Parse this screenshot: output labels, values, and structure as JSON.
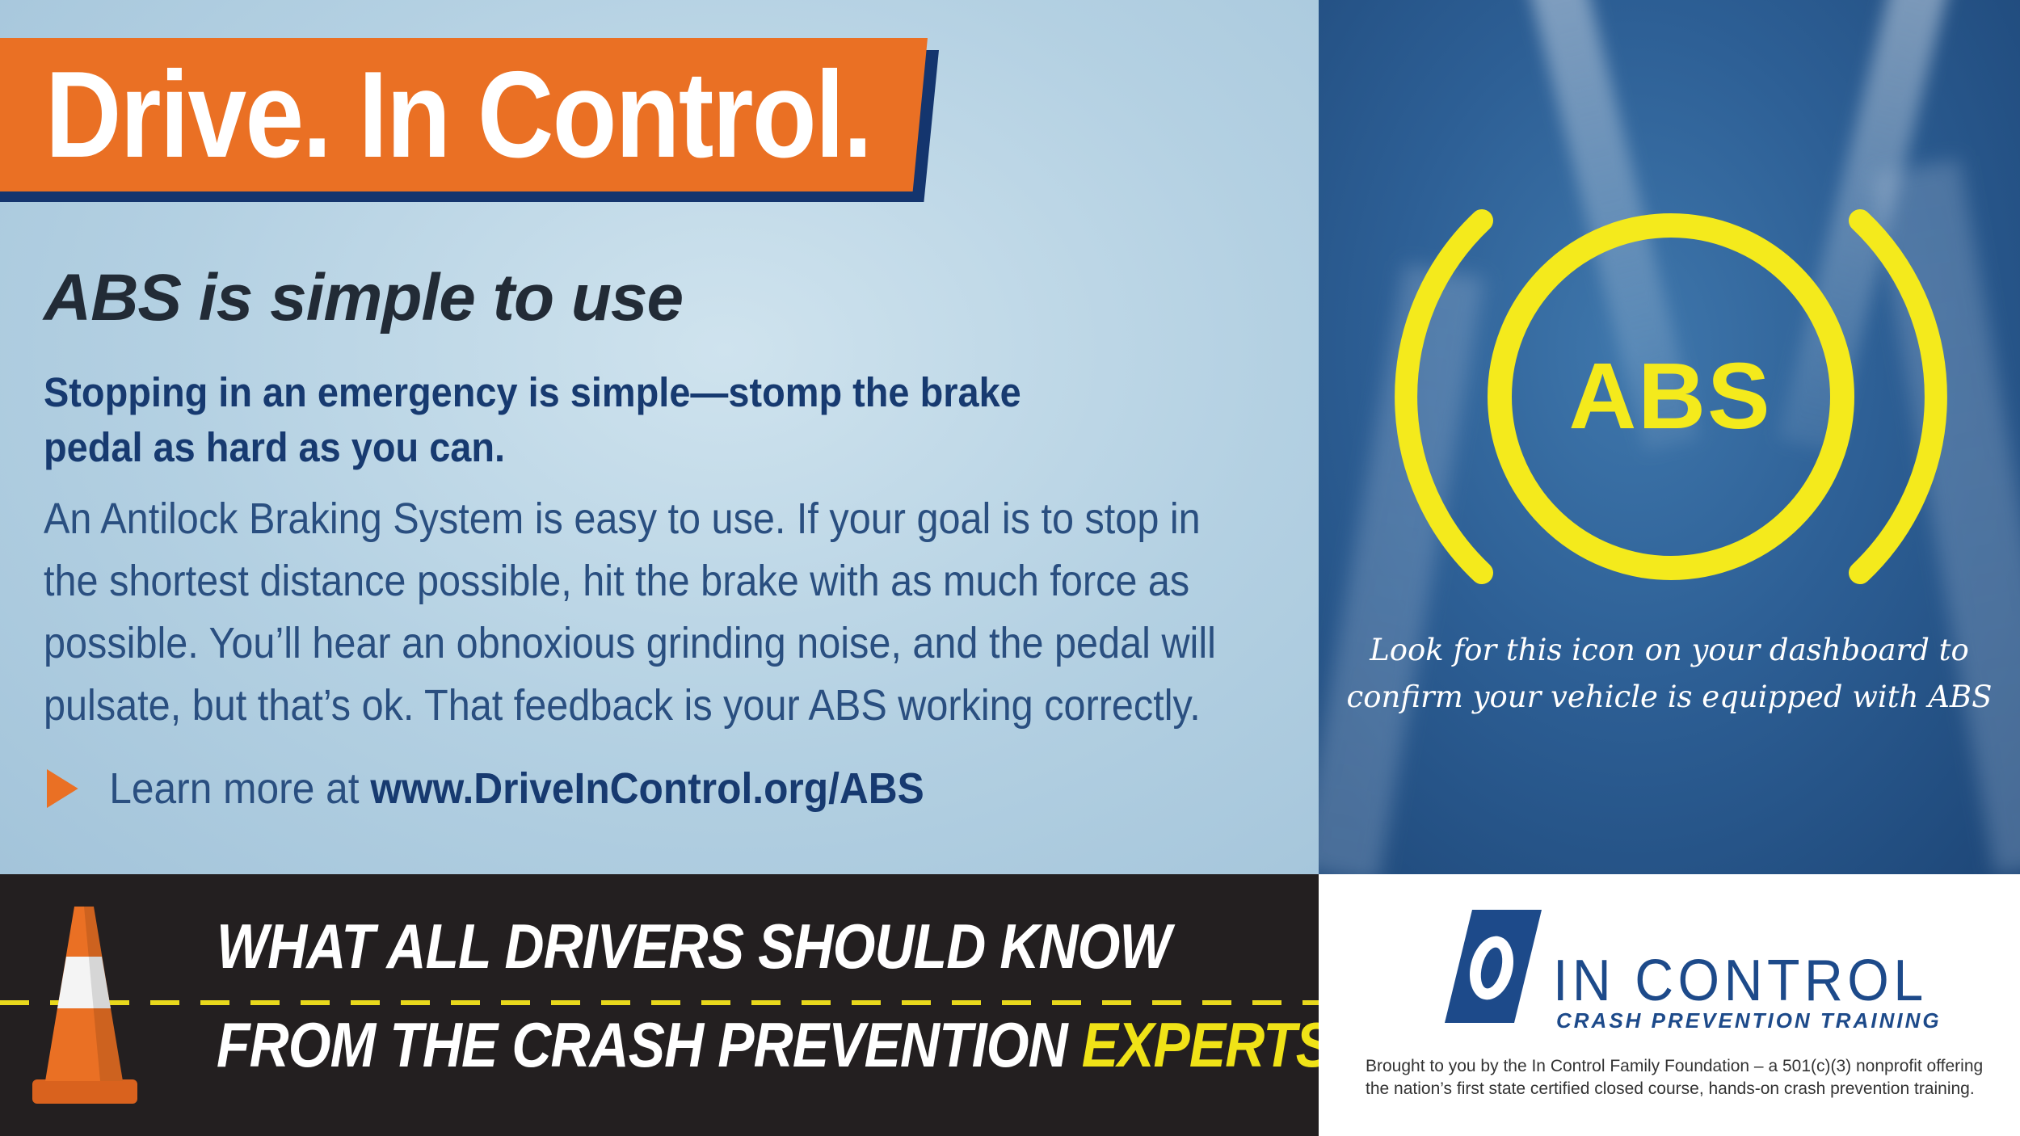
{
  "banner": {
    "title": "Drive. In Control."
  },
  "content": {
    "headline": "ABS is simple to use",
    "lead_lines": [
      "Stopping in an emergency is simple—stomp the brake",
      "pedal as hard as you can."
    ],
    "body_lines": [
      "An Antilock Braking System is easy to use. If your goal is to stop in",
      "the shortest distance possible, hit the brake with as much force as",
      "possible. You’ll hear an obnoxious grinding noise, and the pedal will",
      "pulsate, but that’s ok. That feedback is your ABS working correctly."
    ],
    "learn_more_prefix": "Learn more at ",
    "learn_more_link": "www.DriveInControl.org/ABS"
  },
  "abs_panel": {
    "icon_label": "ABS",
    "caption_lines": [
      "Look for this icon on your dashboard to",
      "confirm your vehicle is equipped with ABS"
    ]
  },
  "bottom": {
    "tagline_line1": "WHAT ALL DRIVERS SHOULD KNOW",
    "tagline_line2_prefix": "FROM THE CRASH PREVENTION ",
    "tagline_line2_highlight": "EXPERTS"
  },
  "logo": {
    "brand_name": "IN CONTROL",
    "brand_sub": "CRASH PREVENTION TRAINING",
    "brought_lines": [
      "Brought to you by the In Control Family Foundation – a 501(c)(3) nonprofit offering",
      "the nation’s first state certified closed course, hands-on crash prevention training."
    ]
  },
  "colors": {
    "orange": "#ea7024",
    "navy": "#173a70",
    "yellow": "#f4ea1c",
    "dark": "#231f20"
  },
  "icons": [
    "abs-warning-icon",
    "traffic-cone-icon",
    "in-control-logo-icon",
    "play-arrow-icon"
  ]
}
